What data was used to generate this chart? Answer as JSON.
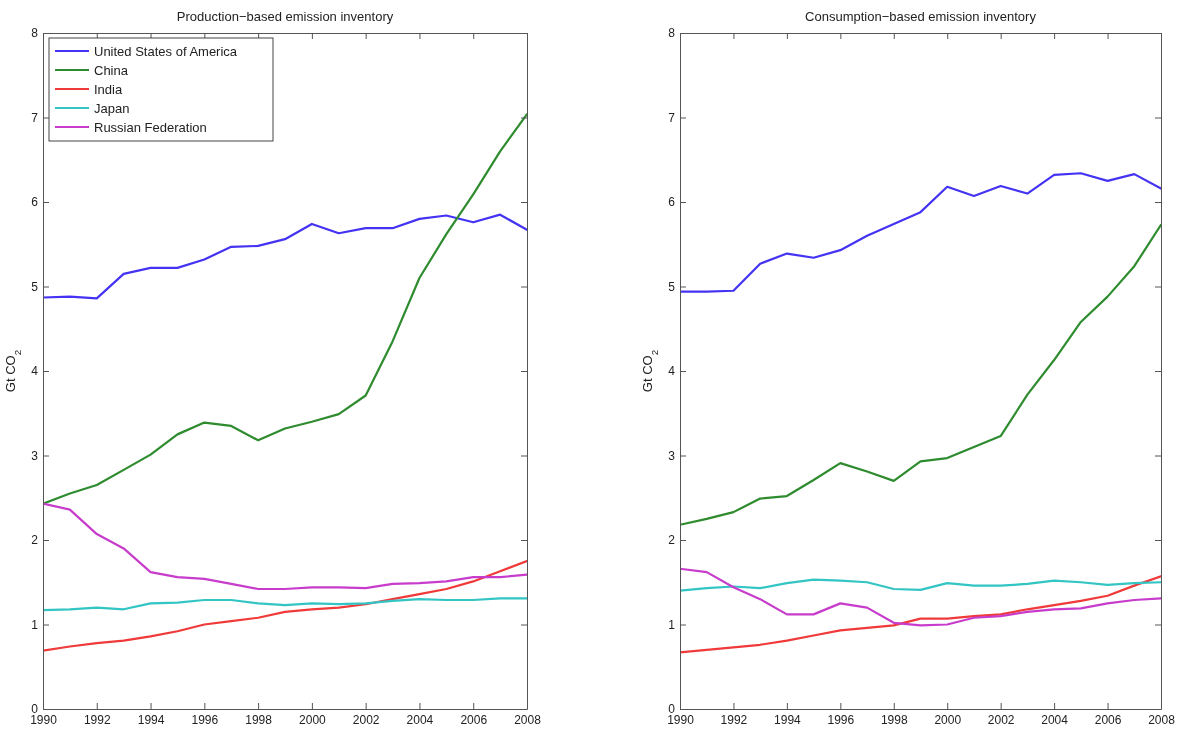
{
  "chart_data": [
    {
      "type": "line",
      "title": "Production−based emission inventory",
      "ylabel": "Gt CO$_{2}$",
      "x": [
        1990,
        1991,
        1992,
        1993,
        1994,
        1995,
        1996,
        1997,
        1998,
        1999,
        2000,
        2001,
        2002,
        2003,
        2004,
        2005,
        2006,
        2007,
        2008
      ],
      "xlim": [
        1990,
        2008
      ],
      "xticks": [
        1990,
        1992,
        1994,
        1996,
        1998,
        2000,
        2002,
        2004,
        2006,
        2008
      ],
      "ylim": [
        0,
        8
      ],
      "yticks": [
        0,
        1,
        2,
        3,
        4,
        5,
        6,
        7,
        8
      ],
      "grid": false,
      "legend": "top left",
      "marker": "none",
      "line_style": "solid",
      "series": [
        {
          "name": "United States of America",
          "color": "#4433f2",
          "values": [
            4.87,
            4.88,
            4.86,
            5.15,
            5.22,
            5.22,
            5.32,
            5.47,
            5.48,
            5.56,
            5.74,
            5.63,
            5.69,
            5.69,
            5.8,
            5.84,
            5.76,
            5.85,
            5.67
          ]
        },
        {
          "name": "China",
          "color": "#2e8b2e",
          "values": [
            2.43,
            2.55,
            2.65,
            2.83,
            3.01,
            3.25,
            3.39,
            3.35,
            3.18,
            3.32,
            3.4,
            3.49,
            3.71,
            4.35,
            5.1,
            5.62,
            6.09,
            6.6,
            7.04
          ]
        },
        {
          "name": "India",
          "color": "#f03a3a",
          "values": [
            0.69,
            0.74,
            0.78,
            0.81,
            0.86,
            0.92,
            1.0,
            1.04,
            1.08,
            1.15,
            1.18,
            1.2,
            1.24,
            1.3,
            1.36,
            1.42,
            1.51,
            1.63,
            1.75
          ]
        },
        {
          "name": "Japan",
          "color": "#33c4c4",
          "values": [
            1.17,
            1.18,
            1.2,
            1.18,
            1.25,
            1.26,
            1.29,
            1.29,
            1.25,
            1.23,
            1.25,
            1.24,
            1.25,
            1.28,
            1.3,
            1.29,
            1.29,
            1.31,
            1.31
          ]
        },
        {
          "name": "Russian Federation",
          "color": "#c83ccc",
          "values": [
            2.43,
            2.36,
            2.07,
            1.9,
            1.62,
            1.56,
            1.54,
            1.48,
            1.42,
            1.42,
            1.44,
            1.44,
            1.43,
            1.48,
            1.49,
            1.51,
            1.56,
            1.56,
            1.59
          ]
        }
      ]
    },
    {
      "type": "line",
      "title": "Consumption−based emission inventory",
      "ylabel": "Gt CO$_{2}$",
      "x": [
        1990,
        1991,
        1992,
        1993,
        1994,
        1995,
        1996,
        1997,
        1998,
        1999,
        2000,
        2001,
        2002,
        2003,
        2004,
        2005,
        2006,
        2007,
        2008
      ],
      "xlim": [
        1990,
        2008
      ],
      "xticks": [
        1990,
        1992,
        1994,
        1996,
        1998,
        2000,
        2002,
        2004,
        2006,
        2008
      ],
      "ylim": [
        0,
        8
      ],
      "yticks": [
        0,
        1,
        2,
        3,
        4,
        5,
        6,
        7,
        8
      ],
      "grid": false,
      "legend": false,
      "marker": "none",
      "line_style": "solid",
      "series": [
        {
          "color": "#4433f2",
          "values": [
            4.94,
            4.94,
            4.95,
            5.27,
            5.39,
            5.34,
            5.43,
            5.6,
            5.74,
            5.88,
            6.18,
            6.07,
            6.19,
            6.1,
            6.32,
            6.34,
            6.25,
            6.33,
            6.16
          ]
        },
        {
          "color": "#2e8b2e",
          "values": [
            2.18,
            2.25,
            2.33,
            2.49,
            2.52,
            2.71,
            2.91,
            2.81,
            2.7,
            2.93,
            2.97,
            3.1,
            3.23,
            3.72,
            4.13,
            4.58,
            4.88,
            5.24,
            5.73
          ]
        },
        {
          "color": "#f03a3a",
          "values": [
            0.67,
            0.7,
            0.73,
            0.76,
            0.81,
            0.87,
            0.93,
            0.96,
            0.99,
            1.07,
            1.07,
            1.1,
            1.12,
            1.18,
            1.23,
            1.28,
            1.34,
            1.46,
            1.57
          ]
        },
        {
          "color": "#33c4c4",
          "values": [
            1.4,
            1.43,
            1.45,
            1.43,
            1.49,
            1.53,
            1.52,
            1.5,
            1.42,
            1.41,
            1.49,
            1.46,
            1.46,
            1.48,
            1.52,
            1.5,
            1.47,
            1.49,
            1.5
          ]
        },
        {
          "color": "#c83ccc",
          "values": [
            1.66,
            1.62,
            1.44,
            1.3,
            1.12,
            1.12,
            1.25,
            1.2,
            1.02,
            0.99,
            1.0,
            1.08,
            1.1,
            1.15,
            1.18,
            1.19,
            1.25,
            1.29,
            1.31
          ]
        }
      ]
    }
  ]
}
